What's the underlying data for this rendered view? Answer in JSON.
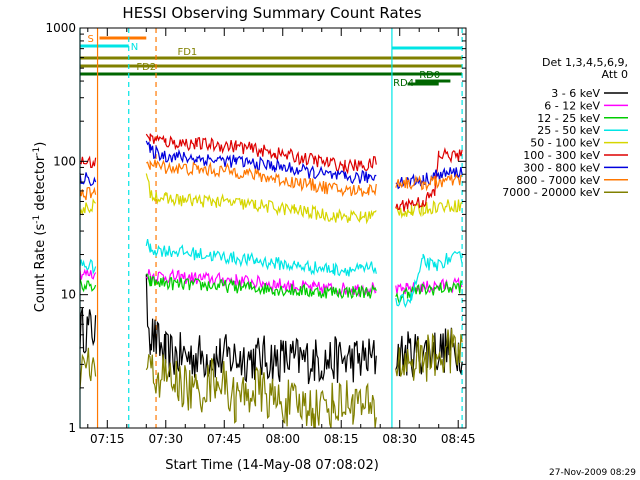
{
  "chart_data": {
    "type": "line",
    "title": "HESSI Observing Summary Count Rates",
    "xlabel": "Start Time (14-May-08 07:08:02)",
    "ylabel_main": "Count Rate (s",
    "ylabel_sup1": "-1",
    "ylabel_mid": " detector",
    "ylabel_sup2": "-1",
    "ylabel_end": ")",
    "yscale": "log",
    "ylim": [
      1,
      1000
    ],
    "xlim_min": [
      0,
      99
    ],
    "y_ticks": [
      {
        "value": 1,
        "label": "1"
      },
      {
        "value": 10,
        "label": "10"
      },
      {
        "value": 100,
        "label": "100"
      },
      {
        "value": 1000,
        "label": "1000"
      }
    ],
    "x_ticks": [
      {
        "value": 7,
        "label": "07:15"
      },
      {
        "value": 22,
        "label": "07:30"
      },
      {
        "value": 37,
        "label": "07:45"
      },
      {
        "value": 52,
        "label": "08:00"
      },
      {
        "value": 67,
        "label": "08:15"
      },
      {
        "value": 82,
        "label": "08:30"
      },
      {
        "value": 97,
        "label": "08:45"
      }
    ],
    "timestamp": "27-Nov-2009 08:29",
    "legend": {
      "title_line1": "Det 1,3,4,5,6,9,",
      "title_line2": "Att 0",
      "position": "right"
    },
    "series": [
      {
        "name": "3 - 6 keV",
        "color": "#000000",
        "segments": [
          [
            [
              0,
              5.5
            ],
            [
              4,
              5.5
            ]
          ],
          [
            [
              17,
              9.5
            ],
            [
              18,
              5.2
            ],
            [
              22,
              3.5
            ],
            [
              35,
              3.4
            ],
            [
              50,
              3.3
            ],
            [
              62,
              3.2
            ],
            [
              76,
              3.3
            ]
          ],
          [
            [
              81,
              3.5
            ],
            [
              91,
              3.8
            ],
            [
              98,
              3.9
            ]
          ]
        ]
      },
      {
        "name": "6 - 12 keV",
        "color": "#ff00ff",
        "segments": [
          [
            [
              0,
              14.5
            ],
            [
              4,
              14
            ]
          ],
          [
            [
              17,
              15
            ],
            [
              18,
              14
            ],
            [
              25,
              13.5
            ],
            [
              40,
              12.8
            ],
            [
              50,
              12
            ],
            [
              60,
              11.2
            ],
            [
              70,
              11
            ],
            [
              76,
              11.3
            ]
          ],
          [
            [
              81,
              10.5
            ],
            [
              84,
              11
            ],
            [
              90,
              11.5
            ],
            [
              98,
              12
            ]
          ]
        ]
      },
      {
        "name": "12 - 25 keV",
        "color": "#00cc00",
        "segments": [
          [
            [
              0,
              12
            ],
            [
              4,
              11
            ]
          ],
          [
            [
              17,
              13
            ],
            [
              18,
              12.5
            ],
            [
              25,
              12
            ],
            [
              40,
              11.5
            ],
            [
              50,
              11
            ],
            [
              60,
              10.5
            ],
            [
              70,
              10.5
            ],
            [
              76,
              10.5
            ]
          ],
          [
            [
              81,
              9
            ],
            [
              84,
              10.5
            ],
            [
              90,
              11
            ],
            [
              98,
              11.5
            ]
          ]
        ]
      },
      {
        "name": "25 - 50 keV",
        "color": "#00e5e5",
        "segments": [
          [
            [
              0,
              17
            ],
            [
              4,
              16
            ]
          ],
          [
            [
              17,
              24
            ],
            [
              18,
              22
            ],
            [
              25,
              21
            ],
            [
              35,
              19.5
            ],
            [
              45,
              18
            ],
            [
              55,
              16.5
            ],
            [
              65,
              15.5
            ],
            [
              72,
              15.3
            ],
            [
              76,
              16
            ]
          ],
          [
            [
              81,
              8.5
            ],
            [
              85,
              9.5
            ],
            [
              88,
              18
            ],
            [
              91,
              16
            ],
            [
              94,
              18.5
            ],
            [
              98,
              19
            ]
          ]
        ]
      },
      {
        "name": "50 - 100 keV",
        "color": "#d6d600",
        "segments": [
          [
            [
              0,
              43
            ],
            [
              4,
              48
            ]
          ],
          [
            [
              17,
              75
            ],
            [
              18,
              58
            ],
            [
              22,
              52
            ],
            [
              35,
              50
            ],
            [
              45,
              47
            ],
            [
              55,
              43
            ],
            [
              65,
              39
            ],
            [
              72,
              38
            ],
            [
              76,
              40
            ]
          ],
          [
            [
              81,
              43
            ],
            [
              85,
              42
            ],
            [
              88,
              44
            ],
            [
              91,
              46
            ],
            [
              98,
              47
            ]
          ]
        ]
      },
      {
        "name": "100 - 300 keV",
        "color": "#dd0000",
        "segments": [
          [
            [
              0,
              100
            ],
            [
              4,
              97
            ]
          ],
          [
            [
              17,
              165
            ],
            [
              18,
              150
            ],
            [
              22,
              140
            ],
            [
              30,
              135
            ],
            [
              40,
              130
            ],
            [
              50,
              115
            ],
            [
              60,
              102
            ],
            [
              68,
              92
            ],
            [
              74,
              93
            ],
            [
              76,
              100
            ]
          ],
          [
            [
              81,
              45
            ],
            [
              84,
              48
            ],
            [
              88,
              50
            ],
            [
              91,
              58
            ],
            [
              92,
              112
            ],
            [
              98,
              110
            ]
          ]
        ]
      },
      {
        "name": "300 - 800 keV",
        "color": "#0000dd",
        "segments": [
          [
            [
              0,
              75
            ],
            [
              4,
              73
            ]
          ],
          [
            [
              17,
              135
            ],
            [
              18,
              120
            ],
            [
              22,
              110
            ],
            [
              30,
              105
            ],
            [
              40,
              100
            ],
            [
              50,
              92
            ],
            [
              60,
              82
            ],
            [
              68,
              75
            ],
            [
              74,
              76
            ],
            [
              76,
              78
            ]
          ],
          [
            [
              81,
              70
            ],
            [
              84,
              71
            ],
            [
              88,
              72
            ],
            [
              91,
              78
            ],
            [
              98,
              84
            ]
          ]
        ]
      },
      {
        "name": "800 - 7000 keV",
        "color": "#ff7700",
        "segments": [
          [
            [
              0,
              58
            ],
            [
              4,
              56
            ]
          ],
          [
            [
              17,
              105
            ],
            [
              18,
              95
            ],
            [
              22,
              90
            ],
            [
              30,
              87
            ],
            [
              40,
              84
            ],
            [
              50,
              74
            ],
            [
              60,
              66
            ],
            [
              68,
              60
            ],
            [
              74,
              61
            ],
            [
              76,
              62
            ]
          ],
          [
            [
              81,
              70
            ],
            [
              84,
              69
            ],
            [
              88,
              68
            ],
            [
              91,
              70
            ],
            [
              98,
              72
            ]
          ]
        ]
      },
      {
        "name": "7000 - 20000 keV",
        "color": "#808000",
        "segments": [
          [
            [
              0,
              2.8
            ],
            [
              4,
              2.8
            ]
          ],
          [
            [
              17,
              2.7
            ],
            [
              25,
              2.2
            ],
            [
              30,
              1.8
            ],
            [
              35,
              2.5
            ],
            [
              40,
              1.6
            ],
            [
              45,
              2
            ],
            [
              50,
              1.6
            ],
            [
              55,
              1.5
            ],
            [
              60,
              1.4
            ],
            [
              65,
              1.5
            ],
            [
              70,
              1.6
            ],
            [
              76,
              1.3
            ]
          ],
          [
            [
              81,
              3
            ],
            [
              88,
              3.3
            ],
            [
              95,
              3.7
            ],
            [
              98,
              3.8
            ]
          ]
        ]
      }
    ],
    "vlines": [
      {
        "x": 0,
        "color": "#00e5e5",
        "dash": false
      },
      {
        "x": 4.5,
        "color": "#ff7700",
        "dash": false
      },
      {
        "x": 12.5,
        "color": "#00e5e5",
        "dash": true
      },
      {
        "x": 19.5,
        "color": "#ff7700",
        "dash": true
      },
      {
        "x": 80,
        "color": "#00e5e5",
        "dash": false
      },
      {
        "x": 98,
        "color": "#00e5e5",
        "dash": true
      }
    ],
    "flag_bars": [
      {
        "label": "S",
        "color": "#ff7700",
        "x0": 5,
        "x1": 17,
        "y": 38,
        "label_side": "left"
      },
      {
        "label": "N",
        "color": "#00e5e5",
        "x0": 0,
        "x1": 12.5,
        "y": 46,
        "label_side": "end"
      },
      {
        "label": "FD1",
        "color": "#808000",
        "x0": 0,
        "x1": 98,
        "y": 58,
        "label_side": "above-mid"
      },
      {
        "label": "FD2",
        "color": "#808000",
        "x0": 0,
        "x1": 98,
        "y": 66,
        "label_side": "inline-left"
      },
      {
        "label": "RD0",
        "color": "#006600",
        "x0": 86,
        "x1": 95,
        "y": 81,
        "label_side": "above-mid"
      },
      {
        "label": "RD4",
        "color": "#006600",
        "x0": 0,
        "x1": 98,
        "y": 74,
        "label_side": "below-right"
      },
      {
        "label": "",
        "color": "#00e5e5",
        "x0": 80,
        "x1": 98,
        "y": 48,
        "label_side": "none"
      },
      {
        "label": "",
        "color": "#006600",
        "x0": 84,
        "x1": 92,
        "y": 84,
        "label_side": "none"
      }
    ]
  }
}
